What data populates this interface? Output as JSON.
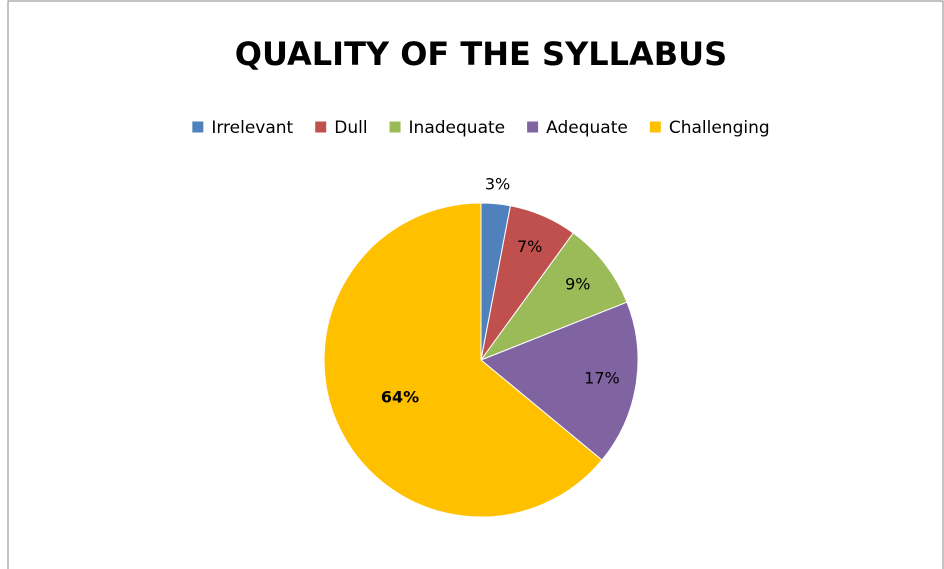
{
  "chart_data": {
    "type": "pie",
    "title": "QUALITY OF THE SYLLABUS",
    "categories": [
      "Irrelevant",
      "Dull",
      "Inadequate",
      "Adequate",
      "Challenging"
    ],
    "values": [
      3,
      7,
      9,
      17,
      64
    ],
    "value_labels": [
      "3%",
      "7%",
      "9%",
      "17%",
      "64%"
    ],
    "colors": [
      "#4f81bd",
      "#c0504d",
      "#9bbb59",
      "#8064a2",
      "#ffc000"
    ],
    "legend": "top"
  }
}
